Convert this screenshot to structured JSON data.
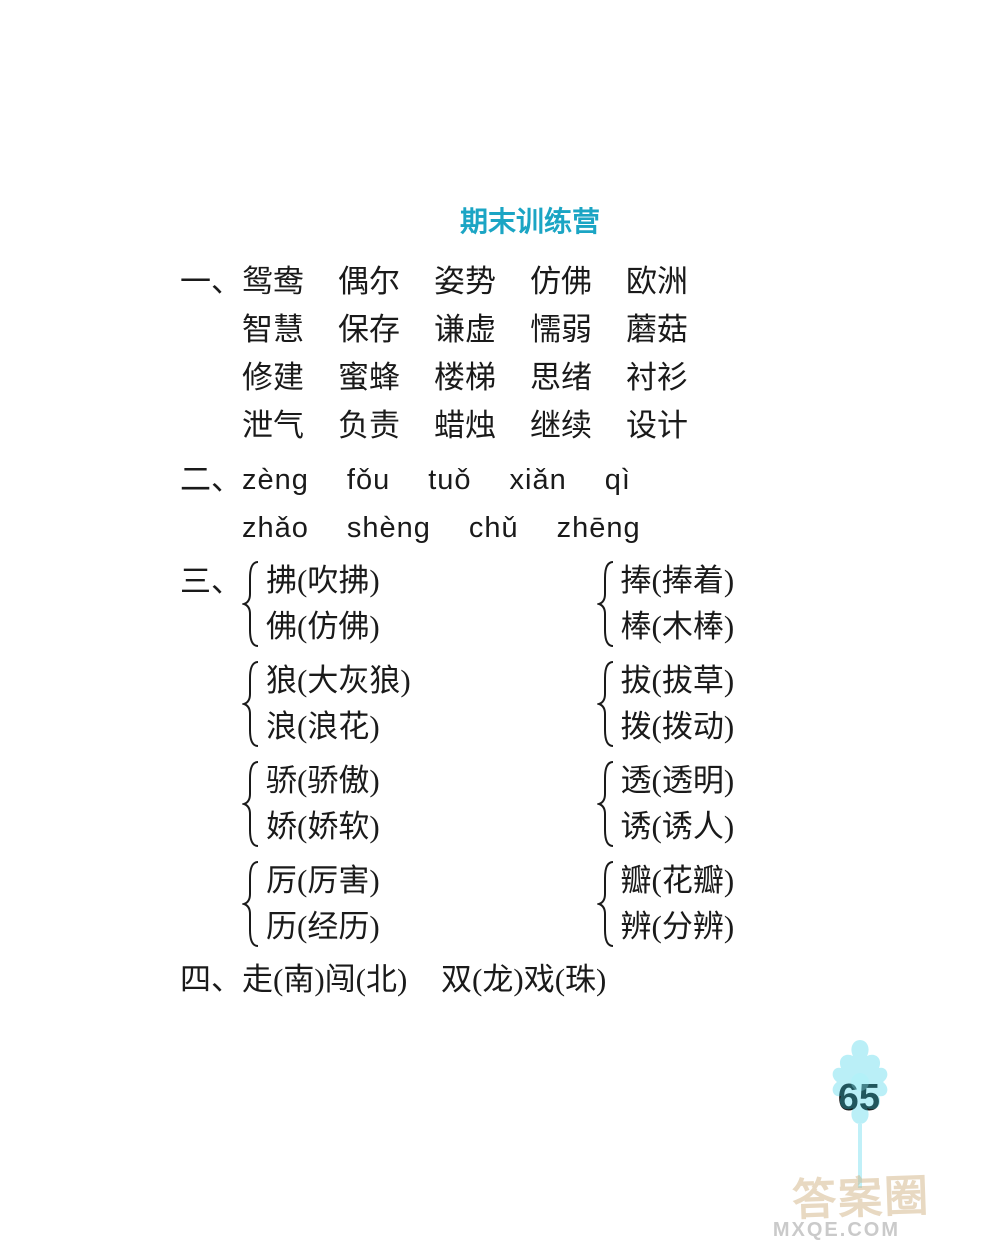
{
  "title": "期末训练营",
  "colors": {
    "title_color": "#1ba5c4",
    "text_color": "#1a1a1a",
    "bracket_color": "#1a1a1a",
    "deco_color": "#2fd0e8",
    "watermark_color": "rgba(205,170,120,0.45)",
    "watermark_sub_color": "rgba(180,180,180,0.7)",
    "background": "#ffffff"
  },
  "typography": {
    "title_fontsize": 28,
    "body_fontsize": 31,
    "pinyin_fontsize": 29,
    "line_height": 48,
    "pair_line_height": 46,
    "page_number_fontsize": 38
  },
  "sections": {
    "one": {
      "label": "一、",
      "rows": [
        [
          "鸳鸯",
          "偶尔",
          "姿势",
          "仿佛",
          "欧洲"
        ],
        [
          "智慧",
          "保存",
          "谦虚",
          "懦弱",
          "蘑菇"
        ],
        [
          "修建",
          "蜜蜂",
          "楼梯",
          "思绪",
          "衬衫"
        ],
        [
          "泄气",
          "负责",
          "蜡烛",
          "继续",
          "设计"
        ]
      ]
    },
    "two": {
      "label": "二、",
      "rows": [
        [
          "zèng",
          "fǒu",
          "tuǒ",
          "xiǎn",
          "qì"
        ],
        [
          "zhǎo",
          "shèng",
          "chǔ",
          "zhēng"
        ]
      ]
    },
    "three": {
      "label": "三、",
      "pairs": [
        {
          "top": "拂(吹拂)",
          "bottom": "佛(仿佛)"
        },
        {
          "top": "捧(捧着)",
          "bottom": "棒(木棒)"
        },
        {
          "top": "狼(大灰狼)",
          "bottom": "浪(浪花)"
        },
        {
          "top": "拔(拔草)",
          "bottom": "拨(拨动)"
        },
        {
          "top": "骄(骄傲)",
          "bottom": "娇(娇软)"
        },
        {
          "top": "透(透明)",
          "bottom": "诱(诱人)"
        },
        {
          "top": "厉(厉害)",
          "bottom": "历(经历)"
        },
        {
          "top": "瓣(花瓣)",
          "bottom": "辨(分辨)"
        }
      ]
    },
    "four": {
      "label": "四、",
      "idioms": [
        "走(南)闯(北)",
        "双(龙)戏(珠)"
      ]
    }
  },
  "page_number": "65",
  "watermark": "答案圈",
  "watermark_sub": "MXQE.COM"
}
